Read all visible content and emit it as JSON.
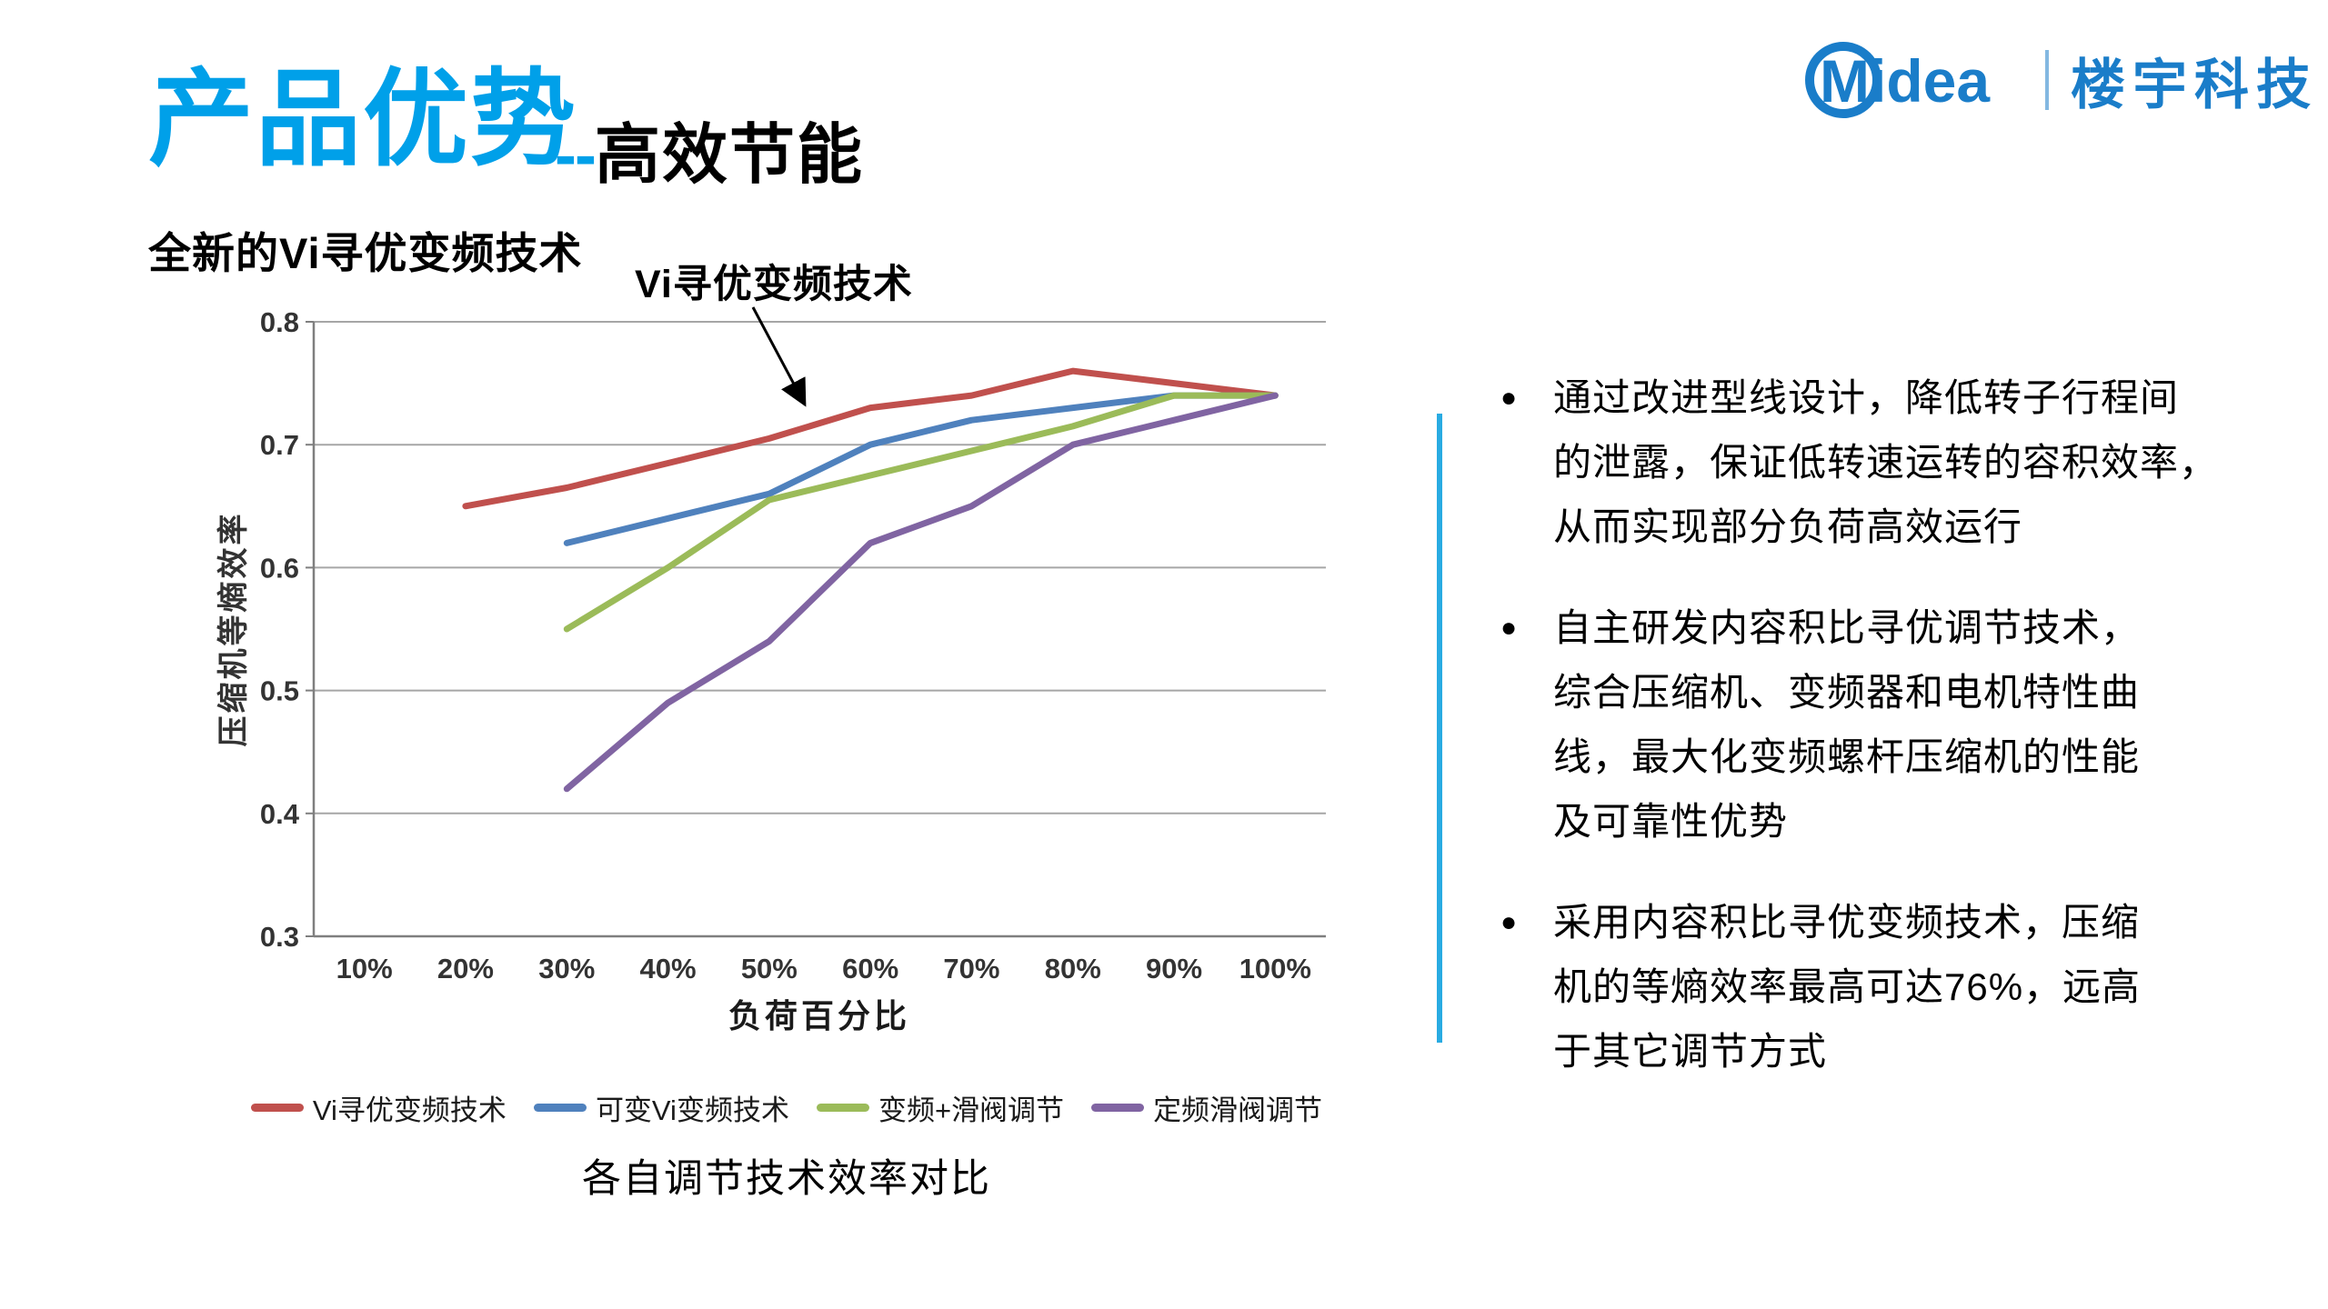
{
  "header": {
    "title_main": "产品优势",
    "title_dashes": "--",
    "title_sub": "高效节能",
    "logo": {
      "brand": "Midea",
      "unit": "楼宇科技"
    }
  },
  "section": {
    "subtitle": "全新的Vi寻优变频技术"
  },
  "chart_data": {
    "type": "line",
    "title": "各自调节技术效率对比",
    "annotation": "Vi寻优变频技术",
    "xlabel": "负荷百分比",
    "ylabel": "压缩机等熵效率",
    "categories": [
      "10%",
      "20%",
      "30%",
      "40%",
      "50%",
      "60%",
      "70%",
      "80%",
      "90%",
      "100%"
    ],
    "ylim": [
      0.3,
      0.8
    ],
    "ytick_labels": [
      "0.8",
      "0.7",
      "0.6",
      "0.5",
      "0.4",
      "0.3"
    ],
    "grid": true,
    "legend_position": "bottom",
    "series": [
      {
        "name": "Vi寻优变频技术",
        "color": "#C0504D",
        "values": [
          null,
          0.65,
          0.665,
          0.685,
          0.705,
          0.73,
          0.74,
          0.76,
          0.75,
          0.74
        ]
      },
      {
        "name": "可变Vi变频技术",
        "color": "#4F81BD",
        "values": [
          null,
          null,
          0.62,
          0.64,
          0.66,
          0.7,
          0.72,
          0.73,
          0.74,
          0.74
        ]
      },
      {
        "name": "变频+滑阀调节",
        "color": "#9BBB59",
        "values": [
          null,
          null,
          0.55,
          0.6,
          0.655,
          0.675,
          0.695,
          0.715,
          0.74,
          0.74
        ]
      },
      {
        "name": "定频滑阀调节",
        "color": "#8064A2",
        "values": [
          null,
          null,
          0.42,
          0.49,
          0.54,
          0.62,
          0.65,
          0.7,
          0.72,
          0.74
        ]
      }
    ]
  },
  "bullets": [
    [
      "通过改进型线设计，降低转子行程间",
      "的泄露，保证低转速运转的容积效率，",
      "从而实现部分负荷高效运行"
    ],
    [
      "自主研发内容积比寻优调节技术，",
      "综合压缩机、变频器和电机特性曲",
      "线，最大化变频螺杆压缩机的性能",
      "及可靠性优势"
    ],
    [
      "采用内容积比寻优变频技术，压缩",
      "机的等熵效率最高可达76%，远高",
      "于其它调节方式"
    ]
  ],
  "colors": {
    "accent_cyan": "#00A0E9",
    "logo_blue": "#1A7DC9",
    "divider_blue": "#29ABE2",
    "grid_line": "#A6A6A6",
    "axis_line": "#7F7F7F",
    "tick_text": "#333333"
  }
}
